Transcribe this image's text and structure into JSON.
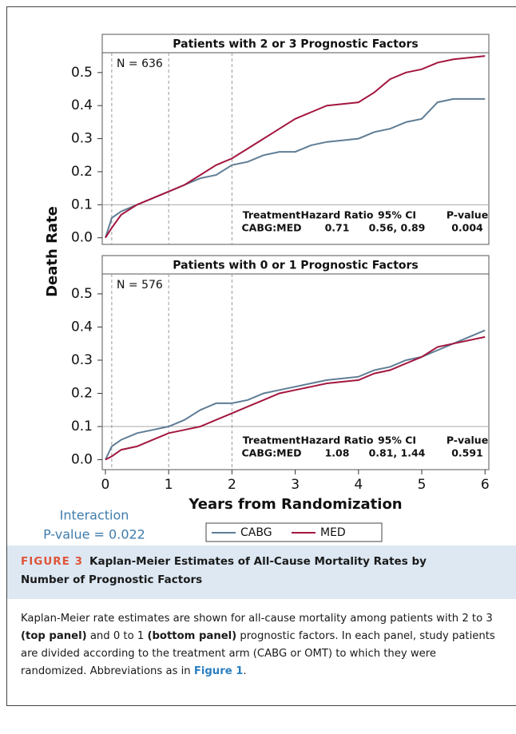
{
  "figure": {
    "y_label": "Death Rate",
    "x_label": "Years from Randomization",
    "interaction": [
      "Interaction",
      "P-value = 0.022"
    ]
  },
  "chart_data": [
    {
      "type": "line",
      "title": "Patients with 2 or 3 Prognostic Factors",
      "annotation": "N = 636",
      "stats": {
        "headers": [
          "Treatment",
          "Hazard Ratio",
          "95% CI",
          "P-value"
        ],
        "row": [
          "CABG:MED",
          "0.71",
          "0.56, 0.89",
          "0.004"
        ]
      },
      "x": [
        0,
        0.1,
        0.25,
        0.5,
        0.75,
        1,
        1.25,
        1.5,
        1.75,
        2,
        2.25,
        2.5,
        2.75,
        3,
        3.25,
        3.5,
        4,
        4.25,
        4.5,
        4.75,
        5,
        5.25,
        5.5,
        6
      ],
      "series": [
        {
          "name": "CABG",
          "color": "#5f7d95",
          "values": [
            0,
            0.06,
            0.08,
            0.1,
            0.12,
            0.14,
            0.16,
            0.18,
            0.19,
            0.22,
            0.23,
            0.25,
            0.26,
            0.26,
            0.28,
            0.29,
            0.3,
            0.32,
            0.33,
            0.35,
            0.36,
            0.41,
            0.42,
            0.42
          ]
        },
        {
          "name": "MED",
          "color": "#a3173f",
          "values": [
            0,
            0.03,
            0.07,
            0.1,
            0.12,
            0.14,
            0.16,
            0.19,
            0.22,
            0.24,
            0.27,
            0.3,
            0.33,
            0.36,
            0.38,
            0.4,
            0.41,
            0.44,
            0.48,
            0.5,
            0.51,
            0.53,
            0.54,
            0.55
          ]
        }
      ],
      "xlim": [
        -0.05,
        6.06
      ],
      "ylim": [
        -0.02,
        0.56
      ],
      "xticks": [
        0,
        1,
        2,
        3,
        4,
        5,
        6
      ],
      "yticks": [
        {
          "value": 0,
          "label": "0.0"
        },
        0.1,
        0.2,
        0.3,
        0.4,
        0.5
      ],
      "vlines": [
        0.1,
        1,
        2
      ],
      "hline": 0.1
    },
    {
      "type": "line",
      "title": "Patients with 0 or 1 Prognostic Factors",
      "annotation": "N = 576",
      "stats": {
        "headers": [
          "Treatment",
          "Hazard Ratio",
          "95% CI",
          "P-value"
        ],
        "row": [
          "CABG:MED",
          "1.08",
          "0.81, 1.44",
          "0.591"
        ]
      },
      "x": [
        0,
        0.1,
        0.25,
        0.5,
        0.75,
        1,
        1.25,
        1.5,
        1.75,
        2,
        2.25,
        2.5,
        2.75,
        3,
        3.25,
        3.5,
        4,
        4.25,
        4.5,
        4.75,
        5,
        5.25,
        5.5,
        6
      ],
      "series": [
        {
          "name": "CABG",
          "color": "#5f7d95",
          "values": [
            0,
            0.04,
            0.06,
            0.08,
            0.09,
            0.1,
            0.12,
            0.15,
            0.17,
            0.17,
            0.18,
            0.2,
            0.21,
            0.22,
            0.23,
            0.24,
            0.25,
            0.27,
            0.28,
            0.3,
            0.31,
            0.33,
            0.35,
            0.39
          ]
        },
        {
          "name": "MED",
          "color": "#a3173f",
          "values": [
            0,
            0.01,
            0.03,
            0.04,
            0.06,
            0.08,
            0.09,
            0.1,
            0.12,
            0.14,
            0.16,
            0.18,
            0.2,
            0.21,
            0.22,
            0.23,
            0.24,
            0.26,
            0.27,
            0.29,
            0.31,
            0.34,
            0.35,
            0.37
          ]
        }
      ],
      "xlim": [
        -0.05,
        6.06
      ],
      "ylim": [
        -0.03,
        0.56
      ],
      "xticks": [
        0,
        1,
        2,
        3,
        4,
        5,
        6
      ],
      "yticks": [
        {
          "value": 0,
          "label": "0.0"
        },
        0.1,
        0.2,
        0.3,
        0.4,
        0.5
      ],
      "vlines": [
        0.1,
        1,
        2
      ],
      "hline": 0.1
    }
  ],
  "caption": {
    "label": "FIGURE 3",
    "title": "Kaplan-Meier Estimates of All-Cause Mortality Rates by Number of Prognostic Factors",
    "body": [
      "Kaplan-Meier rate estimates are shown for all-cause mortality among patients with 2 to 3 ",
      "(top panel)",
      " and 0 to 1 ",
      "(bottom panel)",
      " prognostic factors. In each panel, study patients are divided according to the treatment arm (CABG or OMT) to which they were randomized. Abbreviations as in ",
      "Figure 1",
      "."
    ]
  }
}
